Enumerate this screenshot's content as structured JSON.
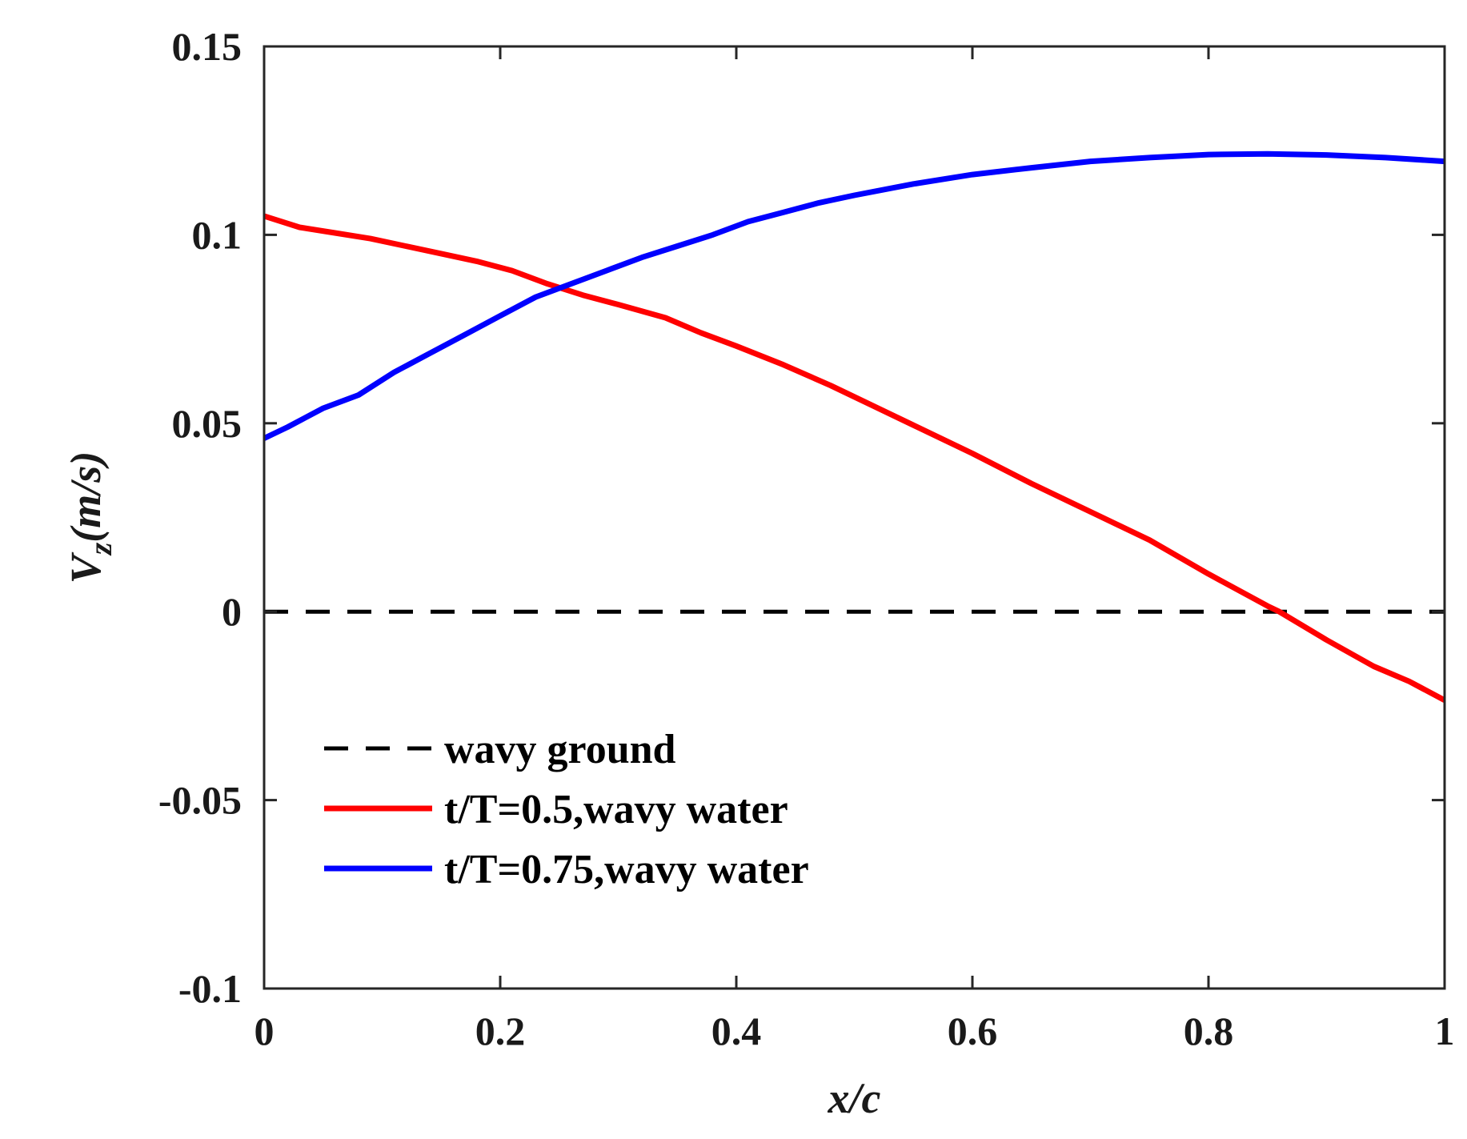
{
  "chart_data": {
    "type": "line",
    "title": "",
    "xlabel": "x/c",
    "ylabel_main": "V",
    "ylabel_sub": "z",
    "ylabel_unit": "(m/s)",
    "xlim": [
      0,
      1
    ],
    "ylim": [
      -0.1,
      0.15
    ],
    "xticks": [
      0,
      0.2,
      0.4,
      0.6,
      0.8,
      1
    ],
    "xtick_labels": [
      "0",
      "0.2",
      "0.4",
      "0.6",
      "0.8",
      "1"
    ],
    "yticks": [
      -0.1,
      -0.05,
      0,
      0.05,
      0.1,
      0.15
    ],
    "ytick_labels": [
      "-0.1",
      "-0.05",
      "0",
      "0.05",
      "0.1",
      "0.15"
    ],
    "grid": false,
    "legend_position": "lower-left",
    "series": [
      {
        "name": "wavy ground",
        "color": "#000000",
        "style": "dashed",
        "x": [
          0,
          1
        ],
        "y": [
          0,
          0
        ]
      },
      {
        "name": "t/T=0.5,wavy water",
        "color": "#ff0000",
        "style": "solid",
        "x": [
          0,
          0.03,
          0.06,
          0.09,
          0.12,
          0.15,
          0.18,
          0.21,
          0.24,
          0.27,
          0.3,
          0.34,
          0.37,
          0.4,
          0.44,
          0.48,
          0.5,
          0.55,
          0.6,
          0.65,
          0.7,
          0.75,
          0.8,
          0.85,
          0.86,
          0.9,
          0.94,
          0.97,
          1.0
        ],
        "y": [
          0.105,
          0.102,
          0.1005,
          0.099,
          0.097,
          0.095,
          0.093,
          0.0905,
          0.087,
          0.084,
          0.0815,
          0.078,
          0.074,
          0.0705,
          0.0655,
          0.06,
          0.057,
          0.0495,
          0.042,
          0.034,
          0.0265,
          0.019,
          0.01,
          0.0015,
          0,
          -0.0075,
          -0.0145,
          -0.0185,
          -0.0235
        ]
      },
      {
        "name": "t/T=0.75,wavy water",
        "color": "#0000ff",
        "style": "solid",
        "x": [
          0,
          0.02,
          0.05,
          0.08,
          0.11,
          0.14,
          0.17,
          0.2,
          0.23,
          0.26,
          0.29,
          0.32,
          0.35,
          0.38,
          0.41,
          0.44,
          0.47,
          0.5,
          0.55,
          0.6,
          0.65,
          0.7,
          0.75,
          0.8,
          0.85,
          0.9,
          0.95,
          1.0
        ],
        "y": [
          0.046,
          0.049,
          0.054,
          0.0575,
          0.0635,
          0.0685,
          0.0735,
          0.0785,
          0.0835,
          0.087,
          0.0905,
          0.094,
          0.097,
          0.1,
          0.1035,
          0.106,
          0.1085,
          0.1105,
          0.1135,
          0.116,
          0.1178,
          0.1195,
          0.1205,
          0.1213,
          0.1215,
          0.1212,
          0.1205,
          0.1195
        ]
      }
    ]
  }
}
